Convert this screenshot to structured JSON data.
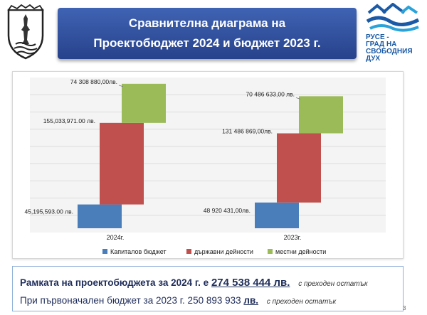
{
  "header": {
    "title_line1": "Сравнителна диаграма на",
    "title_line2": "Проектобюджет 2024 и бюджет 2023 г."
  },
  "logo": {
    "line1": "РУСЕ -",
    "line2": "ГРАД НА",
    "line3": "СВОБОДНИЯ",
    "line4": "ДУХ"
  },
  "chart_data": {
    "type": "bar",
    "categories": [
      "2024г.",
      "2023г."
    ],
    "series": [
      {
        "name": "Капиталов бюджет",
        "color": "#4a7ebb",
        "values": [
          45195593.0,
          48920431.0
        ],
        "labels": [
          "45,195,593.00 лв.",
          "48 920 431,00лв."
        ]
      },
      {
        "name": "държавни дейности",
        "color": "#c0504d",
        "values": [
          155033971.0,
          131486869.0
        ],
        "labels": [
          "155,033,971.00 лв.",
          "131 486 869,00лв."
        ]
      },
      {
        "name": "местни дейности",
        "color": "#9bbb59",
        "values": [
          74308880.0,
          70486633.0
        ],
        "labels": [
          "74 308 880,00лв.",
          "70 486 633,00 лв."
        ]
      }
    ],
    "legend_position": "bottom",
    "grid": true
  },
  "footer": {
    "line1_text": "Рамката на проектобюджета за 2024 г. е",
    "line1_amount": "274 538 444 лв.",
    "line1_note": "с преходен остатък",
    "line2_text": "При първоначален бюджет за 2023 г. 250 893 933",
    "line2_unit": "лв.",
    "line2_note": "с преходен остатък"
  },
  "page_number": "3"
}
